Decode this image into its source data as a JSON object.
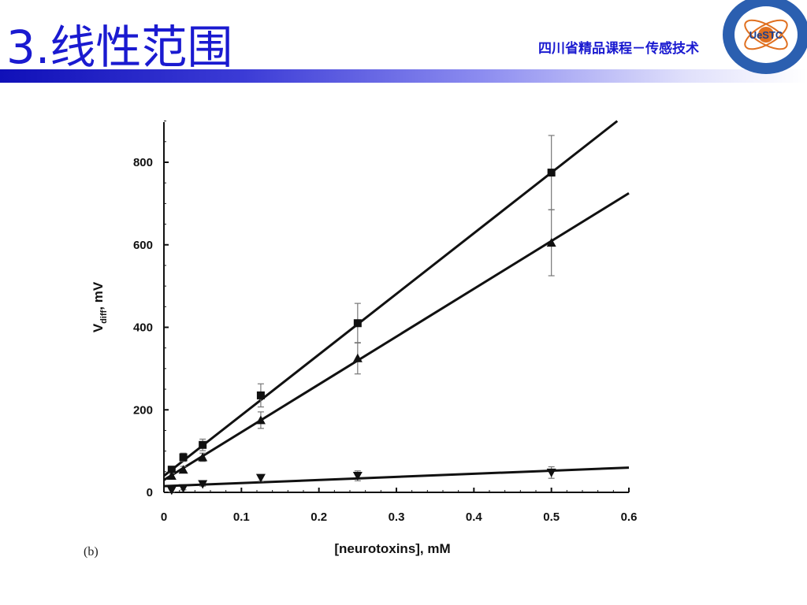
{
  "slide": {
    "title": "3.线性范围",
    "course": "四川省精品课程－传感技术",
    "logo_text": "UeSTC"
  },
  "chart_data": {
    "type": "scatter",
    "panel_label": "(b)",
    "xlabel": "[neurotoxins], mM",
    "ylabel_main": "V",
    "ylabel_sub": "diff",
    "ylabel_suffix": ", mV",
    "xlim": [
      0,
      0.6
    ],
    "ylim": [
      0,
      900
    ],
    "x_ticks": [
      0,
      0.1,
      0.2,
      0.3,
      0.4,
      0.5,
      0.6
    ],
    "x_tick_labels": [
      "0",
      "0.1",
      "0.2",
      "0.3",
      "0.4",
      "0.5",
      "0.6"
    ],
    "y_ticks": [
      0,
      200,
      400,
      600,
      800
    ],
    "y_tick_labels": [
      "0",
      "200",
      "400",
      "600",
      "800"
    ],
    "grid": false,
    "series": [
      {
        "marker": "square",
        "x": [
          0.01,
          0.025,
          0.05,
          0.125,
          0.25,
          0.5
        ],
        "y": [
          55,
          85,
          115,
          235,
          410,
          775
        ],
        "err": [
          8,
          10,
          14,
          28,
          48,
          90
        ],
        "fit": [
          [
            0.0,
            40
          ],
          [
            0.585,
            900
          ]
        ]
      },
      {
        "marker": "triangle-up",
        "x": [
          0.01,
          0.025,
          0.05,
          0.125,
          0.25,
          0.5
        ],
        "y": [
          40,
          55,
          85,
          175,
          325,
          605
        ],
        "err": [
          6,
          8,
          10,
          20,
          38,
          80
        ],
        "fit": [
          [
            0.0,
            30
          ],
          [
            0.6,
            725
          ]
        ]
      },
      {
        "marker": "triangle-down",
        "x": [
          0.01,
          0.025,
          0.05,
          0.125,
          0.25,
          0.5
        ],
        "y": [
          5,
          10,
          20,
          35,
          40,
          48
        ],
        "err": [
          4,
          4,
          5,
          8,
          12,
          14
        ],
        "fit": [
          [
            0.0,
            15
          ],
          [
            0.6,
            60
          ]
        ]
      }
    ]
  }
}
